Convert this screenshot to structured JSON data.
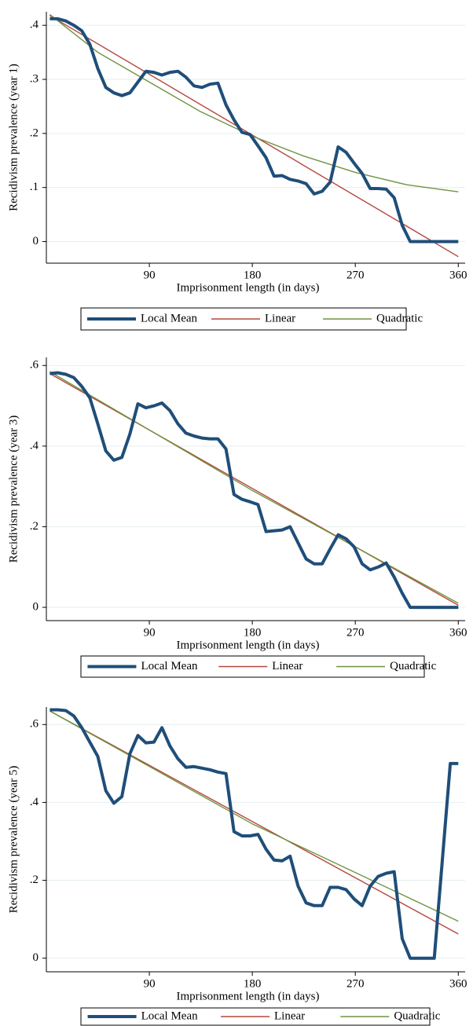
{
  "chart_data": [
    {
      "type": "line",
      "xlabel": "Imprisonment length (in days)",
      "ylabel": "Recidivism prevalence (year 1)",
      "xlim": [
        0,
        366
      ],
      "xticks": [
        90,
        180,
        270,
        360
      ],
      "ylim": [
        -0.04,
        0.425
      ],
      "yticks": [
        0,
        {
          "value": 0.1,
          "label": ".1"
        },
        {
          "value": 0.2,
          "label": ".2"
        },
        {
          "value": 0.3,
          "label": ".3"
        },
        {
          "value": 0.4,
          "label": ".4"
        }
      ],
      "grid": true,
      "legend": "bottom",
      "series": [
        {
          "name": "Local Mean",
          "color": "#1f4e79",
          "x": [
            3,
            10,
            17,
            24,
            31,
            38,
            45,
            52,
            59,
            66,
            73,
            80,
            87,
            94,
            101,
            108,
            115,
            122,
            129,
            136,
            143,
            150,
            157,
            164,
            171,
            178,
            185,
            192,
            199,
            206,
            213,
            220,
            227,
            234,
            241,
            248,
            255,
            262,
            269,
            276,
            283,
            290,
            297,
            304,
            311,
            318,
            325,
            332,
            339,
            346,
            353,
            360
          ],
          "values": [
            0.412,
            0.412,
            0.408,
            0.4,
            0.39,
            0.365,
            0.32,
            0.285,
            0.275,
            0.27,
            0.275,
            0.295,
            0.315,
            0.313,
            0.308,
            0.313,
            0.315,
            0.304,
            0.288,
            0.285,
            0.291,
            0.293,
            0.253,
            0.225,
            0.202,
            0.198,
            0.177,
            0.155,
            0.121,
            0.122,
            0.115,
            0.112,
            0.107,
            0.088,
            0.093,
            0.11,
            0.175,
            0.165,
            0.145,
            0.126,
            0.098,
            0.098,
            0.097,
            0.081,
            0.03,
            0,
            0,
            0,
            0,
            0,
            0,
            0
          ]
        },
        {
          "name": "Linear",
          "color": "#b5473f",
          "x": [
            3,
            360
          ],
          "values": [
            0.418,
            -0.028
          ]
        },
        {
          "name": "Quadratic",
          "color": "#6f9440",
          "x": [
            3,
            45,
            90,
            135,
            180,
            225,
            270,
            315,
            360
          ],
          "values": [
            0.42,
            0.35,
            0.295,
            0.24,
            0.195,
            0.158,
            0.128,
            0.105,
            0.092
          ]
        }
      ]
    },
    {
      "type": "line",
      "xlabel": "Imprisonment length (in days)",
      "ylabel": "Recidivism prevalence (year 3)",
      "xlim": [
        0,
        366
      ],
      "xticks": [
        90,
        180,
        270,
        360
      ],
      "ylim": [
        -0.033,
        0.62
      ],
      "yticks": [
        0,
        {
          "value": 0.2,
          "label": ".2"
        },
        {
          "value": 0.4,
          "label": ".4"
        },
        {
          "value": 0.6,
          "label": ".6"
        }
      ],
      "grid": true,
      "legend": "bottom",
      "series": [
        {
          "name": "Local Mean",
          "color": "#1f4e79",
          "x": [
            3,
            10,
            17,
            24,
            31,
            38,
            45,
            52,
            59,
            66,
            73,
            80,
            87,
            94,
            101,
            108,
            115,
            122,
            129,
            136,
            143,
            150,
            157,
            164,
            171,
            178,
            185,
            192,
            199,
            206,
            213,
            220,
            227,
            234,
            241,
            248,
            255,
            262,
            269,
            276,
            283,
            290,
            297,
            304,
            311,
            318,
            325,
            332,
            339,
            346,
            353,
            360
          ],
          "values": [
            0.58,
            0.582,
            0.578,
            0.57,
            0.548,
            0.52,
            0.455,
            0.388,
            0.365,
            0.372,
            0.43,
            0.505,
            0.495,
            0.5,
            0.507,
            0.488,
            0.455,
            0.432,
            0.425,
            0.42,
            0.418,
            0.418,
            0.393,
            0.28,
            0.268,
            0.262,
            0.255,
            0.188,
            0.19,
            0.192,
            0.2,
            0.16,
            0.12,
            0.108,
            0.108,
            0.145,
            0.18,
            0.17,
            0.15,
            0.108,
            0.093,
            0.1,
            0.11,
            0.075,
            0.035,
            0,
            0,
            0,
            0,
            0,
            0,
            0
          ]
        },
        {
          "name": "Linear",
          "color": "#b5473f",
          "x": [
            3,
            360
          ],
          "values": [
            0.58,
            0.005
          ]
        },
        {
          "name": "Quadratic",
          "color": "#6f9440",
          "x": [
            3,
            180,
            360
          ],
          "values": [
            0.585,
            0.29,
            0.01
          ]
        }
      ]
    },
    {
      "type": "line",
      "xlabel": "Imprisonment length (in days)",
      "ylabel": "Recidivism prevalence (year 5)",
      "xlim": [
        0,
        366
      ],
      "xticks": [
        90,
        180,
        270,
        360
      ],
      "ylim": [
        -0.035,
        0.645
      ],
      "yticks": [
        0,
        {
          "value": 0.2,
          "label": ".2"
        },
        {
          "value": 0.4,
          "label": ".4"
        },
        {
          "value": 0.6,
          "label": ".6"
        }
      ],
      "grid": true,
      "legend": "bottom",
      "series": [
        {
          "name": "Local Mean",
          "color": "#1f4e79",
          "x": [
            3,
            10,
            17,
            24,
            31,
            38,
            45,
            52,
            59,
            66,
            73,
            80,
            87,
            94,
            101,
            108,
            115,
            122,
            129,
            136,
            143,
            150,
            157,
            164,
            171,
            178,
            185,
            192,
            199,
            206,
            213,
            220,
            227,
            234,
            241,
            248,
            255,
            262,
            269,
            276,
            283,
            290,
            297,
            304,
            311,
            318,
            325,
            332,
            339,
            346,
            353,
            360
          ],
          "values": [
            0.638,
            0.638,
            0.636,
            0.622,
            0.592,
            0.555,
            0.518,
            0.43,
            0.398,
            0.415,
            0.525,
            0.572,
            0.553,
            0.555,
            0.592,
            0.545,
            0.512,
            0.49,
            0.492,
            0.488,
            0.484,
            0.478,
            0.474,
            0.325,
            0.314,
            0.314,
            0.318,
            0.28,
            0.252,
            0.25,
            0.262,
            0.185,
            0.142,
            0.135,
            0.135,
            0.182,
            0.182,
            0.176,
            0.152,
            0.135,
            0.185,
            0.21,
            0.218,
            0.222,
            0.05,
            0,
            0,
            0,
            0,
            0.25,
            0.5,
            0.5
          ]
        },
        {
          "name": "Linear",
          "color": "#b5473f",
          "x": [
            3,
            360
          ],
          "values": [
            0.635,
            0.062
          ]
        },
        {
          "name": "Quadratic",
          "color": "#6f9440",
          "x": [
            3,
            180,
            360
          ],
          "values": [
            0.635,
            0.345,
            0.095
          ]
        }
      ]
    }
  ]
}
